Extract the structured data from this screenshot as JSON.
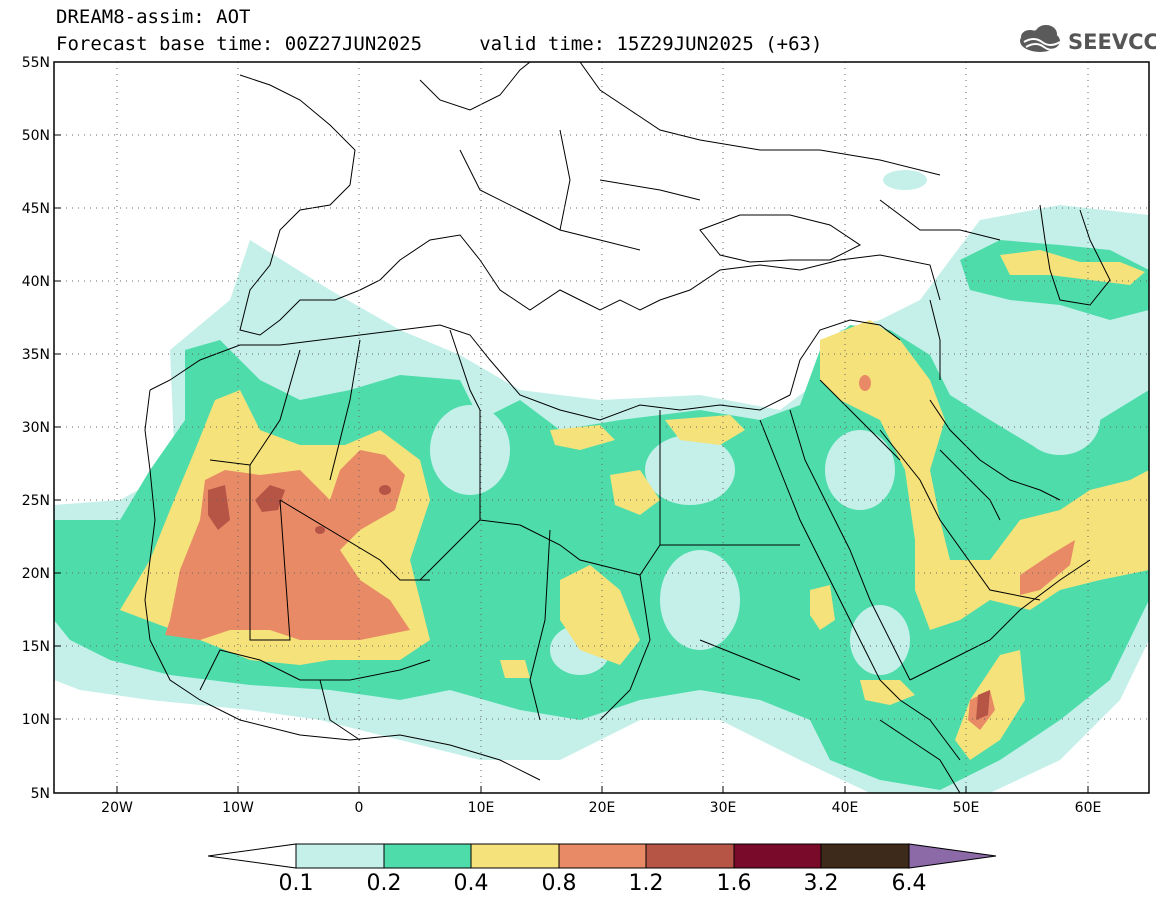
{
  "header": {
    "line1": "DREAM8-assim: AOT",
    "line2": "Forecast base time: 00Z27JUN2025     valid time: 15Z29JUN2025 (+63)",
    "logo_text": "SEEVCCC"
  },
  "map": {
    "lon_range": [
      -25,
      65
    ],
    "lat_range": [
      5,
      55
    ],
    "lat_ticks": [
      "55N",
      "50N",
      "45N",
      "40N",
      "35N",
      "30N",
      "25N",
      "20N",
      "15N",
      "10N",
      "5N"
    ],
    "lon_ticks": [
      "20W",
      "10W",
      "0",
      "10E",
      "20E",
      "30E",
      "40E",
      "50E",
      "60E"
    ],
    "grid": "dotted"
  },
  "colorbar": {
    "labels": [
      "0.1",
      "0.2",
      "0.4",
      "0.8",
      "1.2",
      "1.6",
      "3.2",
      "6.4"
    ],
    "colors": [
      "#ffffff",
      "#c4f0e9",
      "#4fdcab",
      "#f5e27b",
      "#e88a66",
      "#b65446",
      "#7a0a2a",
      "#3e2a1a",
      "#8c6aa8"
    ]
  }
}
